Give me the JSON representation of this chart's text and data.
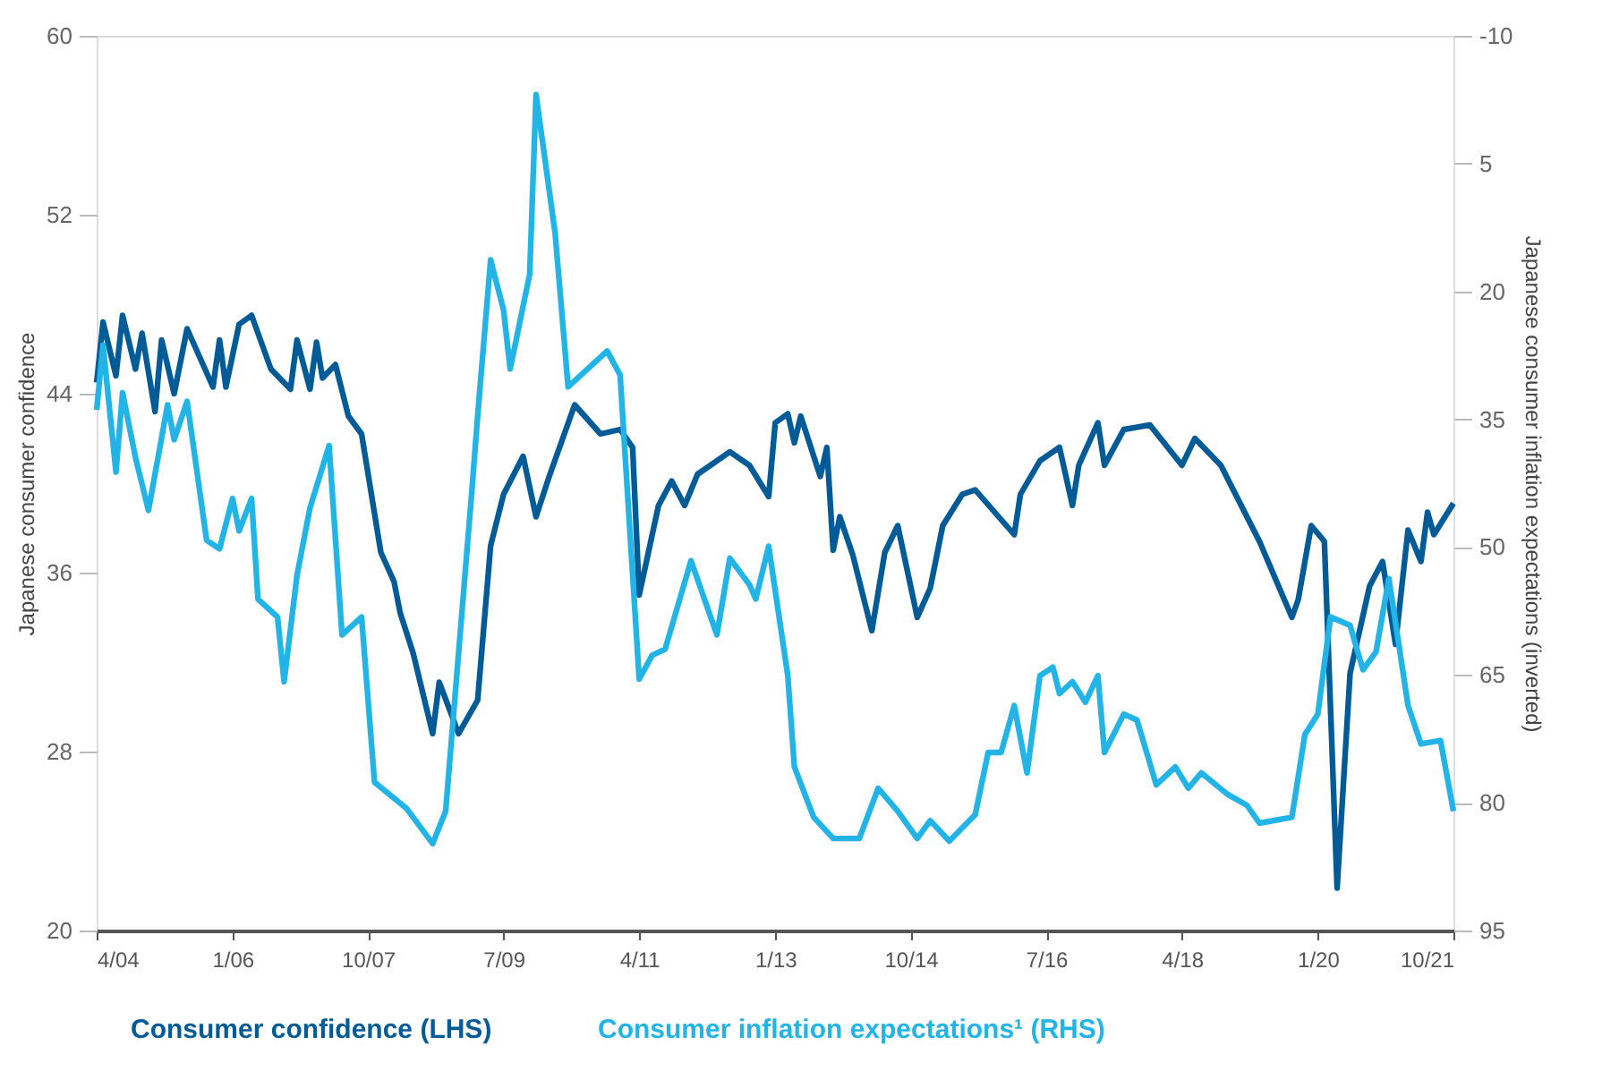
{
  "chart_data": {
    "type": "line",
    "ylabel": "Japanese consumer confidence",
    "y2label": "Japanese consumer inflation expectations  (inverted)",
    "xlim": [
      "2004-04",
      "2021-10"
    ],
    "xticks": [
      {
        "value": "2004-04",
        "label": "4/04"
      },
      {
        "value": "2006-01",
        "label": "1/06"
      },
      {
        "value": "2007-10",
        "label": "10/07"
      },
      {
        "value": "2009-07",
        "label": "7/09"
      },
      {
        "value": "2011-04",
        "label": "4/11"
      },
      {
        "value": "2013-01",
        "label": "1/13"
      },
      {
        "value": "2014-10",
        "label": "10/14"
      },
      {
        "value": "2016-07",
        "label": "7/16"
      },
      {
        "value": "2018-04",
        "label": "4/18"
      },
      {
        "value": "2020-01",
        "label": "1/20"
      },
      {
        "value": "2021-10",
        "label": "10/21"
      }
    ],
    "ylim": [
      20,
      60
    ],
    "yticks": [
      20,
      28,
      36,
      44,
      52,
      60
    ],
    "y2lim": [
      95,
      -10
    ],
    "y2ticks": [
      -10,
      5,
      20,
      35,
      50,
      65,
      80,
      95
    ],
    "grid": false,
    "legend": "bottom",
    "marker": "none",
    "line_style": "solid",
    "series": [
      {
        "name": "Consumer confidence (LHS)",
        "color": "#005b97",
        "x": [
          "2004-04",
          "2004-05",
          "2004-07",
          "2004-08",
          "2004-10",
          "2004-11",
          "2005-01",
          "2005-02",
          "2005-04",
          "2005-06",
          "2005-10",
          "2005-11",
          "2005-12",
          "2006-02",
          "2006-04",
          "2006-07",
          "2006-10",
          "2006-11",
          "2007-01",
          "2007-02",
          "2007-03",
          "2007-05",
          "2007-07",
          "2007-09",
          "2007-12",
          "2008-02",
          "2008-03",
          "2008-05",
          "2008-08",
          "2008-09",
          "2008-12",
          "2009-03",
          "2009-05",
          "2009-07",
          "2009-10",
          "2009-12",
          "2010-02",
          "2010-06",
          "2010-10",
          "2011-01",
          "2011-03",
          "2011-04",
          "2011-07",
          "2011-09",
          "2011-11",
          "2012-01",
          "2012-06",
          "2012-09",
          "2012-12",
          "2013-01",
          "2013-03",
          "2013-04",
          "2013-05",
          "2013-08",
          "2013-09",
          "2013-10",
          "2013-11",
          "2014-01",
          "2014-04",
          "2014-06",
          "2014-08",
          "2014-11",
          "2015-01",
          "2015-03",
          "2015-06",
          "2015-08",
          "2016-02",
          "2016-03",
          "2016-06",
          "2016-09",
          "2016-11",
          "2016-12",
          "2017-03",
          "2017-04",
          "2017-07",
          "2017-11",
          "2018-04",
          "2018-06",
          "2018-10",
          "2019-02",
          "2019-04",
          "2019-09",
          "2019-10",
          "2019-12",
          "2020-02",
          "2020-04",
          "2020-06",
          "2020-09",
          "2020-11",
          "2021-01",
          "2021-03",
          "2021-05",
          "2021-06",
          "2021-07",
          "2021-10"
        ],
        "values": [
          44.5,
          47.2,
          44.8,
          47.5,
          45.1,
          46.7,
          43.2,
          46.4,
          44.0,
          46.9,
          44.3,
          46.4,
          44.3,
          47.1,
          47.5,
          45.1,
          44.2,
          46.4,
          44.2,
          46.3,
          44.7,
          45.3,
          43.0,
          42.2,
          36.9,
          35.6,
          34.2,
          32.4,
          28.8,
          31.1,
          28.8,
          30.3,
          37.2,
          39.5,
          41.2,
          38.5,
          40.3,
          43.5,
          42.2,
          42.4,
          41.6,
          35.0,
          39.0,
          40.1,
          39.0,
          40.4,
          41.4,
          40.8,
          39.4,
          42.7,
          43.1,
          41.8,
          43.0,
          40.3,
          41.6,
          37.0,
          38.5,
          36.8,
          33.4,
          36.9,
          38.1,
          34.0,
          35.3,
          38.1,
          39.5,
          39.7,
          37.7,
          39.5,
          41.0,
          41.6,
          39.0,
          40.8,
          42.7,
          40.8,
          42.4,
          42.6,
          40.8,
          42.0,
          40.8,
          38.5,
          37.4,
          34.0,
          34.8,
          38.1,
          37.4,
          21.9,
          31.5,
          35.4,
          36.5,
          32.8,
          37.9,
          36.5,
          38.7,
          37.7,
          39.1
        ]
      },
      {
        "name": "Consumer inflation expectations¹ (RHS)",
        "color": "#22b4e6",
        "axis": "y2",
        "x": [
          "2004-04",
          "2004-05",
          "2004-07",
          "2004-08",
          "2004-10",
          "2004-12",
          "2005-03",
          "2005-04",
          "2005-06",
          "2005-09",
          "2005-11",
          "2006-01",
          "2006-02",
          "2006-04",
          "2006-05",
          "2006-08",
          "2006-09",
          "2006-11",
          "2007-01",
          "2007-04",
          "2007-06",
          "2007-09",
          "2007-11",
          "2008-04",
          "2008-08",
          "2008-10",
          "2009-02",
          "2009-03",
          "2009-05",
          "2009-07",
          "2009-08",
          "2009-11",
          "2009-12",
          "2010-03",
          "2010-05",
          "2010-07",
          "2010-11",
          "2011-01",
          "2011-04",
          "2011-06",
          "2011-08",
          "2011-12",
          "2012-04",
          "2012-06",
          "2012-09",
          "2012-10",
          "2012-12",
          "2013-03",
          "2013-04",
          "2013-07",
          "2013-10",
          "2014-02",
          "2014-05",
          "2014-08",
          "2014-11",
          "2015-01",
          "2015-04",
          "2015-08",
          "2015-10",
          "2015-12",
          "2016-02",
          "2016-04",
          "2016-06",
          "2016-08",
          "2016-09",
          "2016-11",
          "2017-01",
          "2017-03",
          "2017-04",
          "2017-07",
          "2017-09",
          "2017-12",
          "2018-03",
          "2018-05",
          "2018-07",
          "2018-11",
          "2019-02",
          "2019-04",
          "2019-09",
          "2019-11",
          "2020-01",
          "2020-03",
          "2020-06",
          "2020-08",
          "2020-10",
          "2020-12",
          "2021-03",
          "2021-05",
          "2021-08",
          "2021-10"
        ],
        "values": [
          33.9,
          26.3,
          41.2,
          31.9,
          39.5,
          45.7,
          33.3,
          37.4,
          32.9,
          49.2,
          50.2,
          44.3,
          48.1,
          44.3,
          56.1,
          58.2,
          65.8,
          53.3,
          45.4,
          38.1,
          60.3,
          58.2,
          77.6,
          80.7,
          84.8,
          81.0,
          43.6,
          34.6,
          16.3,
          22.2,
          29.1,
          18.0,
          -3.1,
          13.2,
          31.2,
          29.8,
          27.0,
          29.8,
          65.5,
          62.7,
          62.0,
          51.6,
          60.3,
          51.3,
          54.4,
          56.1,
          49.9,
          65.1,
          75.8,
          81.7,
          84.2,
          84.2,
          78.3,
          81.0,
          84.2,
          82.1,
          84.5,
          81.4,
          74.1,
          74.1,
          68.6,
          76.5,
          65.1,
          64.1,
          67.2,
          65.8,
          68.2,
          65.1,
          74.1,
          69.6,
          70.3,
          77.9,
          75.8,
          78.3,
          76.5,
          79.0,
          80.3,
          82.4,
          81.7,
          72.0,
          69.6,
          58.2,
          59.2,
          64.4,
          62.3,
          53.7,
          68.6,
          73.1,
          72.7,
          81.0
        ]
      }
    ]
  }
}
